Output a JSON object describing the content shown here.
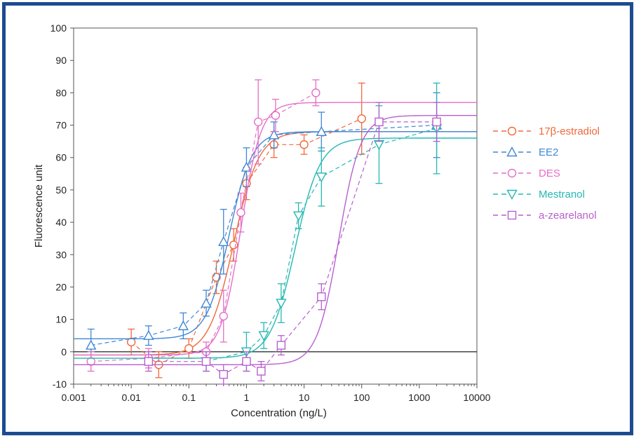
{
  "chart_data": {
    "type": "scatter",
    "xlabel": "Concentration  (ng/L)",
    "ylabel": "Fluorescence  unit",
    "xscale": "log",
    "xlim": [
      0.001,
      10000
    ],
    "ylim": [
      -10,
      100
    ],
    "xticks": [
      "0.001",
      "0.01",
      "0.1",
      "1",
      "10",
      "100",
      "1000",
      "10000"
    ],
    "yticks": [
      "-10",
      "0",
      "10",
      "20",
      "30",
      "40",
      "50",
      "60",
      "70",
      "80",
      "90",
      "100"
    ],
    "grid": false,
    "legend_position": "right",
    "series": [
      {
        "name": "17β-estradiol",
        "color": "#ef6a3a",
        "marker": "circle",
        "x": [
          0.01,
          0.03,
          0.1,
          0.3,
          0.6,
          1,
          3,
          10,
          100
        ],
        "y": [
          3,
          -4,
          1,
          23,
          33,
          52,
          64,
          64,
          72
        ],
        "err": [
          4,
          4,
          3,
          5,
          5,
          5,
          4,
          3,
          11
        ],
        "fit": {
          "bottom": -1,
          "top": 68,
          "ec50": 0.6,
          "hill": 2.0
        }
      },
      {
        "name": "EE2",
        "color": "#3f87d6",
        "marker": "triangle-up",
        "x": [
          0.002,
          0.02,
          0.08,
          0.2,
          0.4,
          1,
          3,
          20,
          2000
        ],
        "y": [
          2,
          5,
          8,
          15,
          34,
          57,
          67,
          68,
          70
        ],
        "err": [
          5,
          3,
          4,
          4,
          10,
          6,
          4,
          6,
          10
        ],
        "fit": {
          "bottom": 4,
          "top": 68,
          "ec50": 0.5,
          "hill": 2.2
        }
      },
      {
        "name": "DES",
        "color": "#e46fc8",
        "marker": "circle",
        "x": [
          0.002,
          0.02,
          0.2,
          0.4,
          0.8,
          1.6,
          3.2,
          16
        ],
        "y": [
          -3,
          -2,
          0,
          11,
          43,
          71,
          73,
          80
        ],
        "err": [
          3,
          3,
          3,
          8,
          6,
          13,
          5,
          4
        ],
        "fit": {
          "bottom": -1,
          "top": 77,
          "ec50": 0.8,
          "hill": 2.5
        }
      },
      {
        "name": "Mestranol",
        "color": "#25b8b2",
        "marker": "triangle-down",
        "x": [
          0.2,
          1,
          2,
          4,
          8,
          20,
          200,
          2000
        ],
        "y": [
          -3,
          0,
          5,
          15,
          42,
          54,
          64,
          69
        ],
        "err": [
          3,
          6,
          4,
          6,
          4,
          9,
          12,
          14
        ],
        "fit": {
          "bottom": -2,
          "top": 66,
          "ec50": 7,
          "hill": 2.0
        }
      },
      {
        "name": "a-zearelanol",
        "color": "#b85fcf",
        "marker": "square",
        "x": [
          0.02,
          0.2,
          0.4,
          1,
          1.8,
          4,
          20,
          200,
          2000
        ],
        "y": [
          -3,
          -3,
          -7,
          -3,
          -6,
          2,
          17,
          71,
          71
        ],
        "err": [
          3,
          3,
          3,
          3,
          3,
          3,
          4,
          6,
          6
        ],
        "fit": {
          "bottom": -4,
          "top": 73,
          "ec50": 40,
          "hill": 2.3
        }
      }
    ]
  },
  "zero_line_color": "#333333"
}
